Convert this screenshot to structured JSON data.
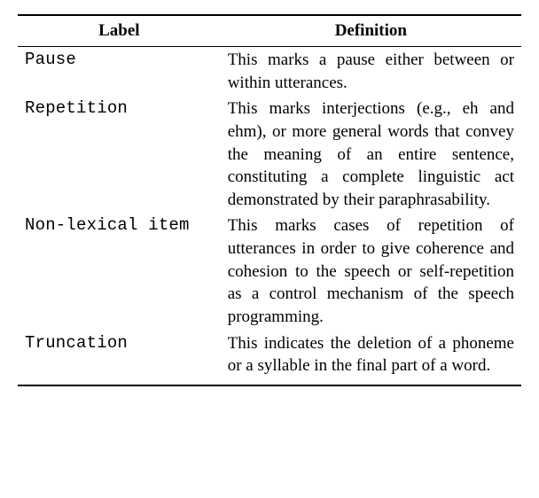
{
  "table": {
    "headers": {
      "label": "Label",
      "definition": "Definition"
    },
    "rows": [
      {
        "label": "Pause",
        "definition": "This marks a pause either between or within utterances."
      },
      {
        "label": "Repetition",
        "definition": "This marks interjections (e.g., eh and ehm), or more general words that convey the meaning of an entire sentence, constituting a complete linguistic act demonstrated by their paraphrasability."
      },
      {
        "label": "Non-lexical item",
        "definition": "This marks cases of repetition of utterances in order to give coherence and cohesion to the speech or self-repetition as a control mechanism of the speech programming."
      },
      {
        "label": "Truncation",
        "definition": "This indicates the deletion of a phoneme or a syllable in the final part of a word."
      }
    ]
  }
}
